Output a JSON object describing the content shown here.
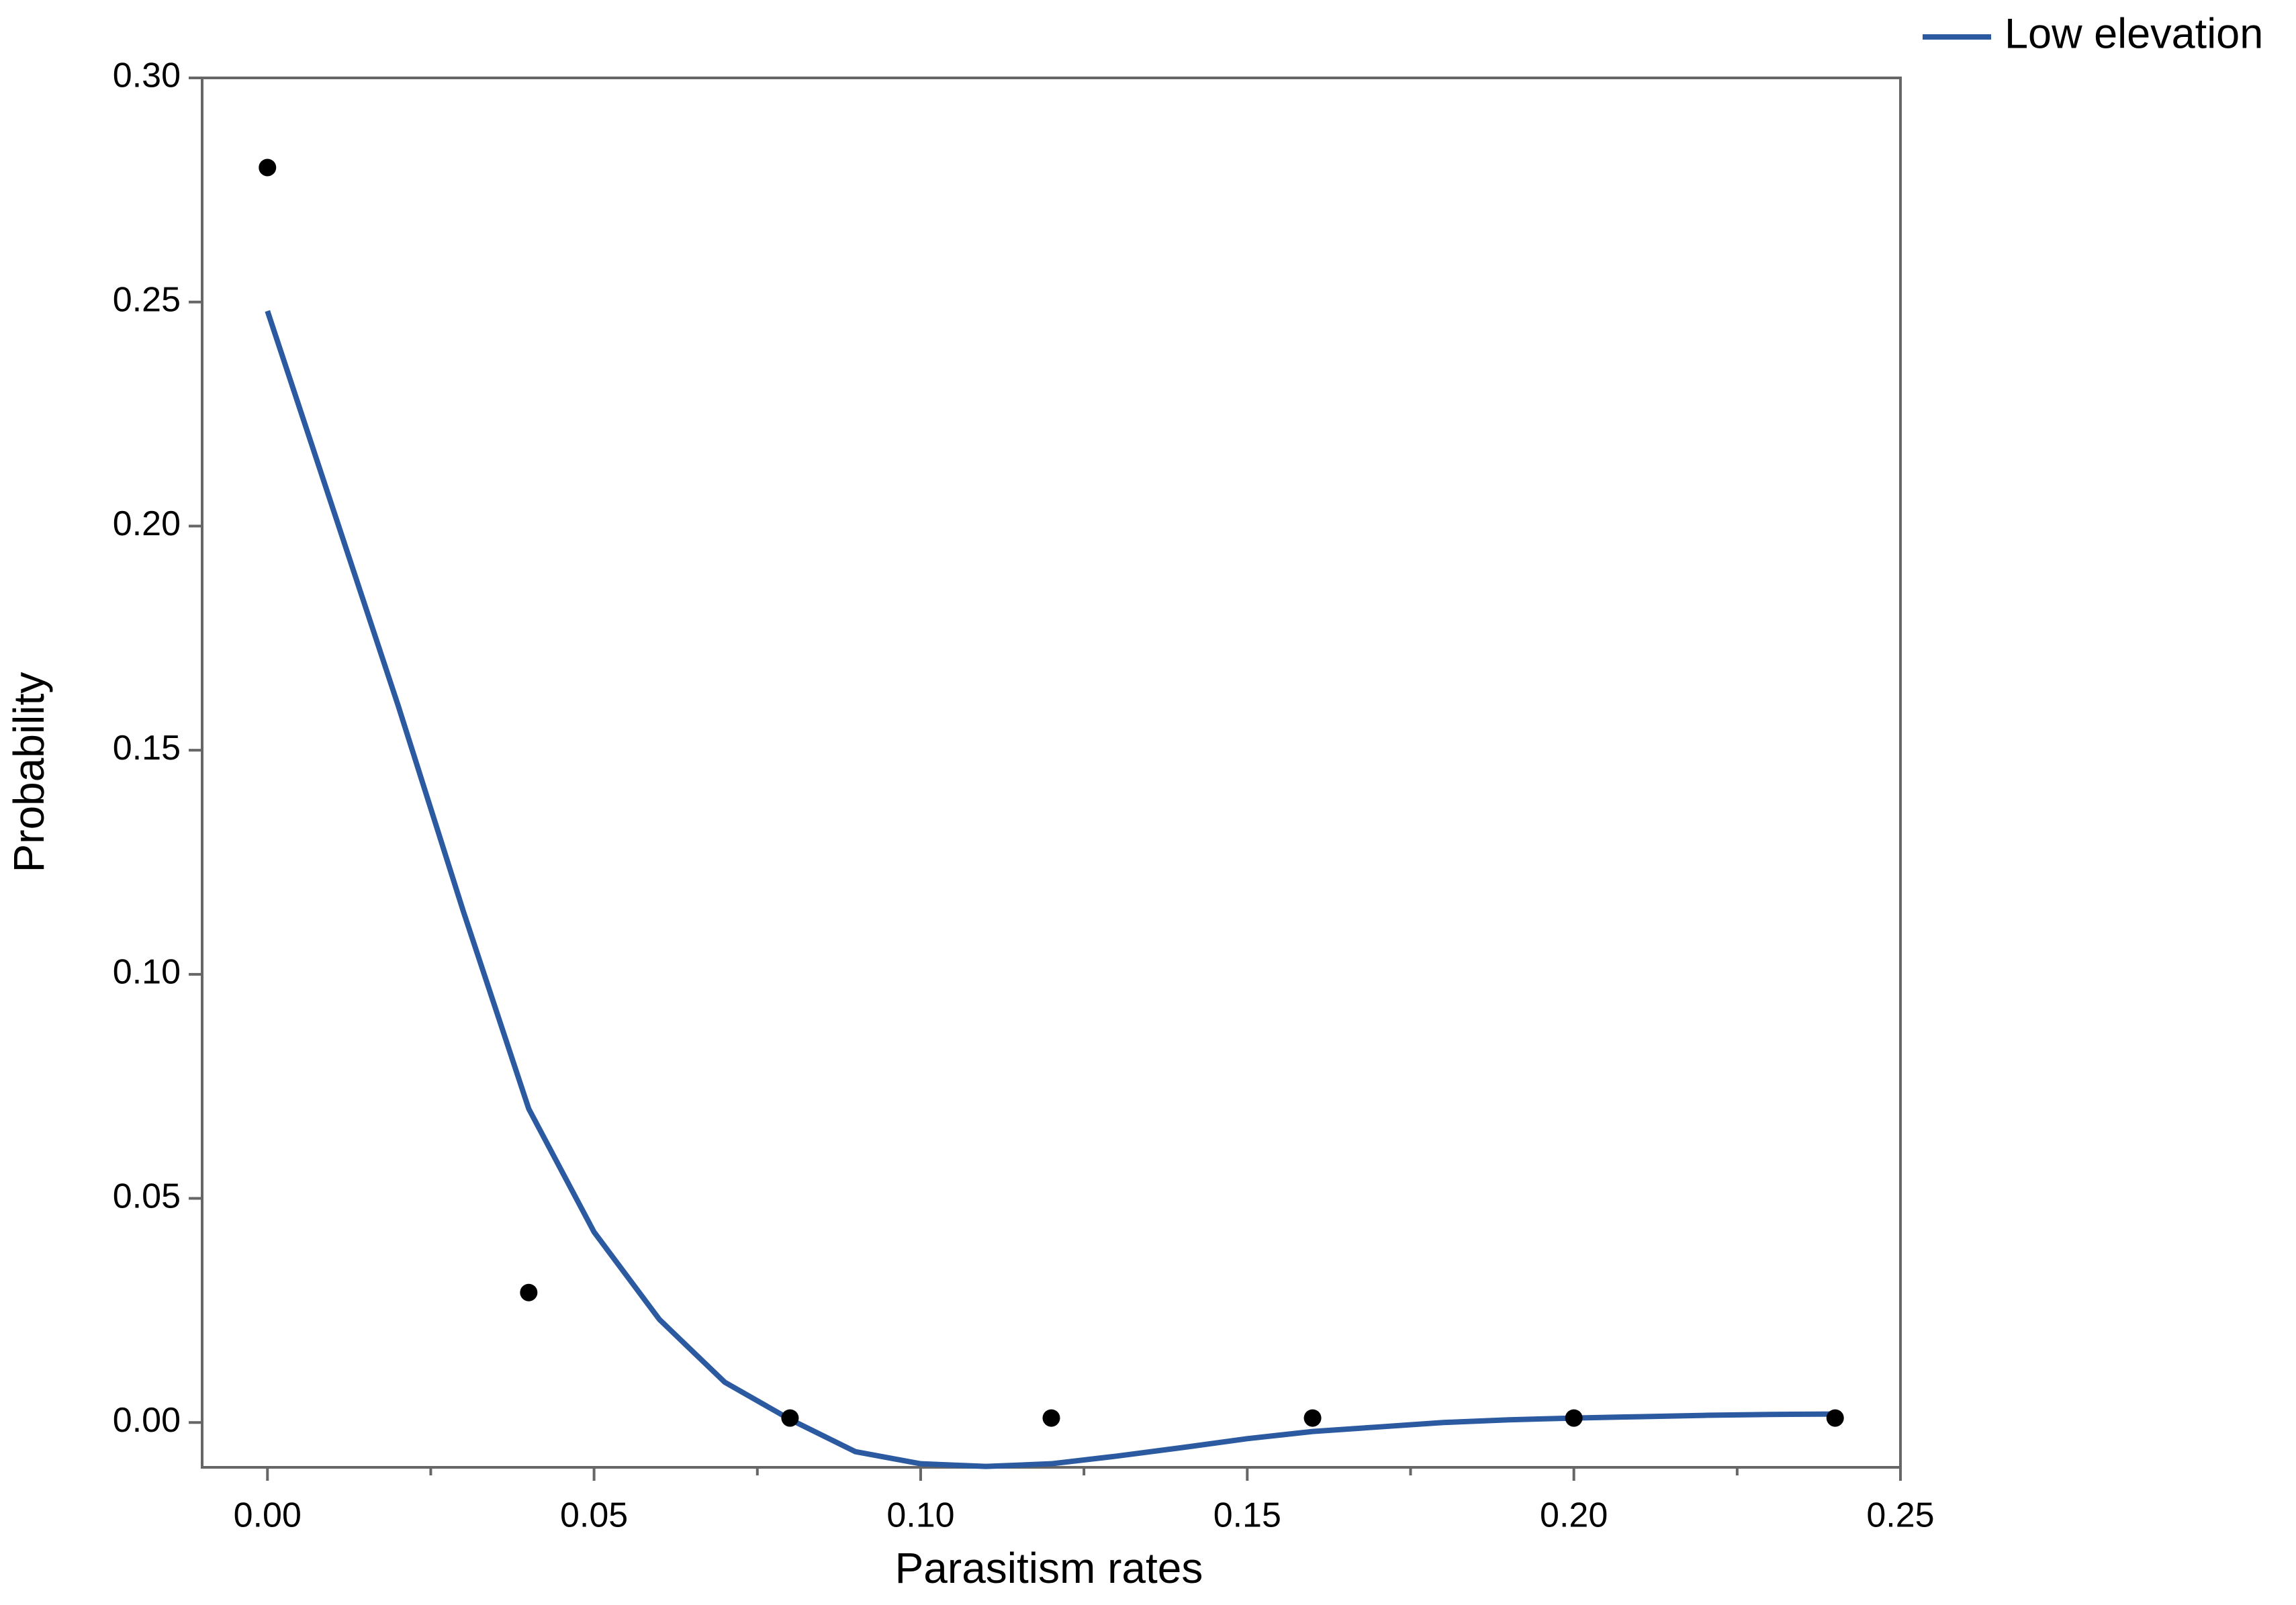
{
  "chart_data": {
    "type": "line",
    "x_label": "Parasitism rates",
    "y_label": "Probability",
    "x": [
      0,
      0.01,
      0.02,
      0.03,
      0.04,
      0.05,
      0.06,
      0.07,
      0.08,
      0.09,
      0.1,
      0.11,
      0.12,
      0.13,
      0.14,
      0.15,
      0.16,
      0.17,
      0.18,
      0.19,
      0.2,
      0.21,
      0.22,
      0.23,
      0.24
    ],
    "series": [
      {
        "name": "Low elevation",
        "color": "#2b5aa0",
        "values": [
          0.248,
          0.204,
          0.16,
          0.114,
          0.07,
          0.0425,
          0.023,
          0.009,
          0.0007,
          -0.0065,
          -0.0092,
          -0.0098,
          -0.0092,
          -0.0075,
          -0.0056,
          -0.0036,
          -0.002,
          -0.001,
          0.0,
          0.0006,
          0.001,
          0.0013,
          0.0016,
          0.0018,
          0.0019
        ]
      }
    ],
    "points": {
      "color": "#000000",
      "x": [
        0,
        0.04,
        0.08,
        0.12,
        0.16,
        0.2,
        0.24
      ],
      "values": [
        0.28,
        0.029,
        0.001,
        0.001,
        0.001,
        0.001,
        0.001
      ]
    },
    "xlim": [
      -0.01,
      0.25
    ],
    "ylim": [
      -0.01,
      0.3
    ],
    "xticks": [
      {
        "value": 0,
        "label": "0.00"
      },
      {
        "value": 0.05,
        "label": "0.05"
      },
      {
        "value": 0.1,
        "label": "0.10"
      },
      {
        "value": 0.15,
        "label": "0.15"
      },
      {
        "value": 0.2,
        "label": "0.20"
      },
      {
        "value": 0.25,
        "label": "0.25"
      }
    ],
    "xticks_minor": [
      0.025,
      0.075,
      0.125,
      0.175,
      0.225
    ],
    "yticks": [
      {
        "value": 0,
        "label": "0.00"
      },
      {
        "value": 0.05,
        "label": "0.05"
      },
      {
        "value": 0.1,
        "label": "0.10"
      },
      {
        "value": 0.15,
        "label": "0.15"
      },
      {
        "value": 0.2,
        "label": "0.20"
      },
      {
        "value": 0.25,
        "label": "0.25"
      },
      {
        "value": 0.3,
        "label": "0.30"
      }
    ],
    "legend": "top-right"
  }
}
